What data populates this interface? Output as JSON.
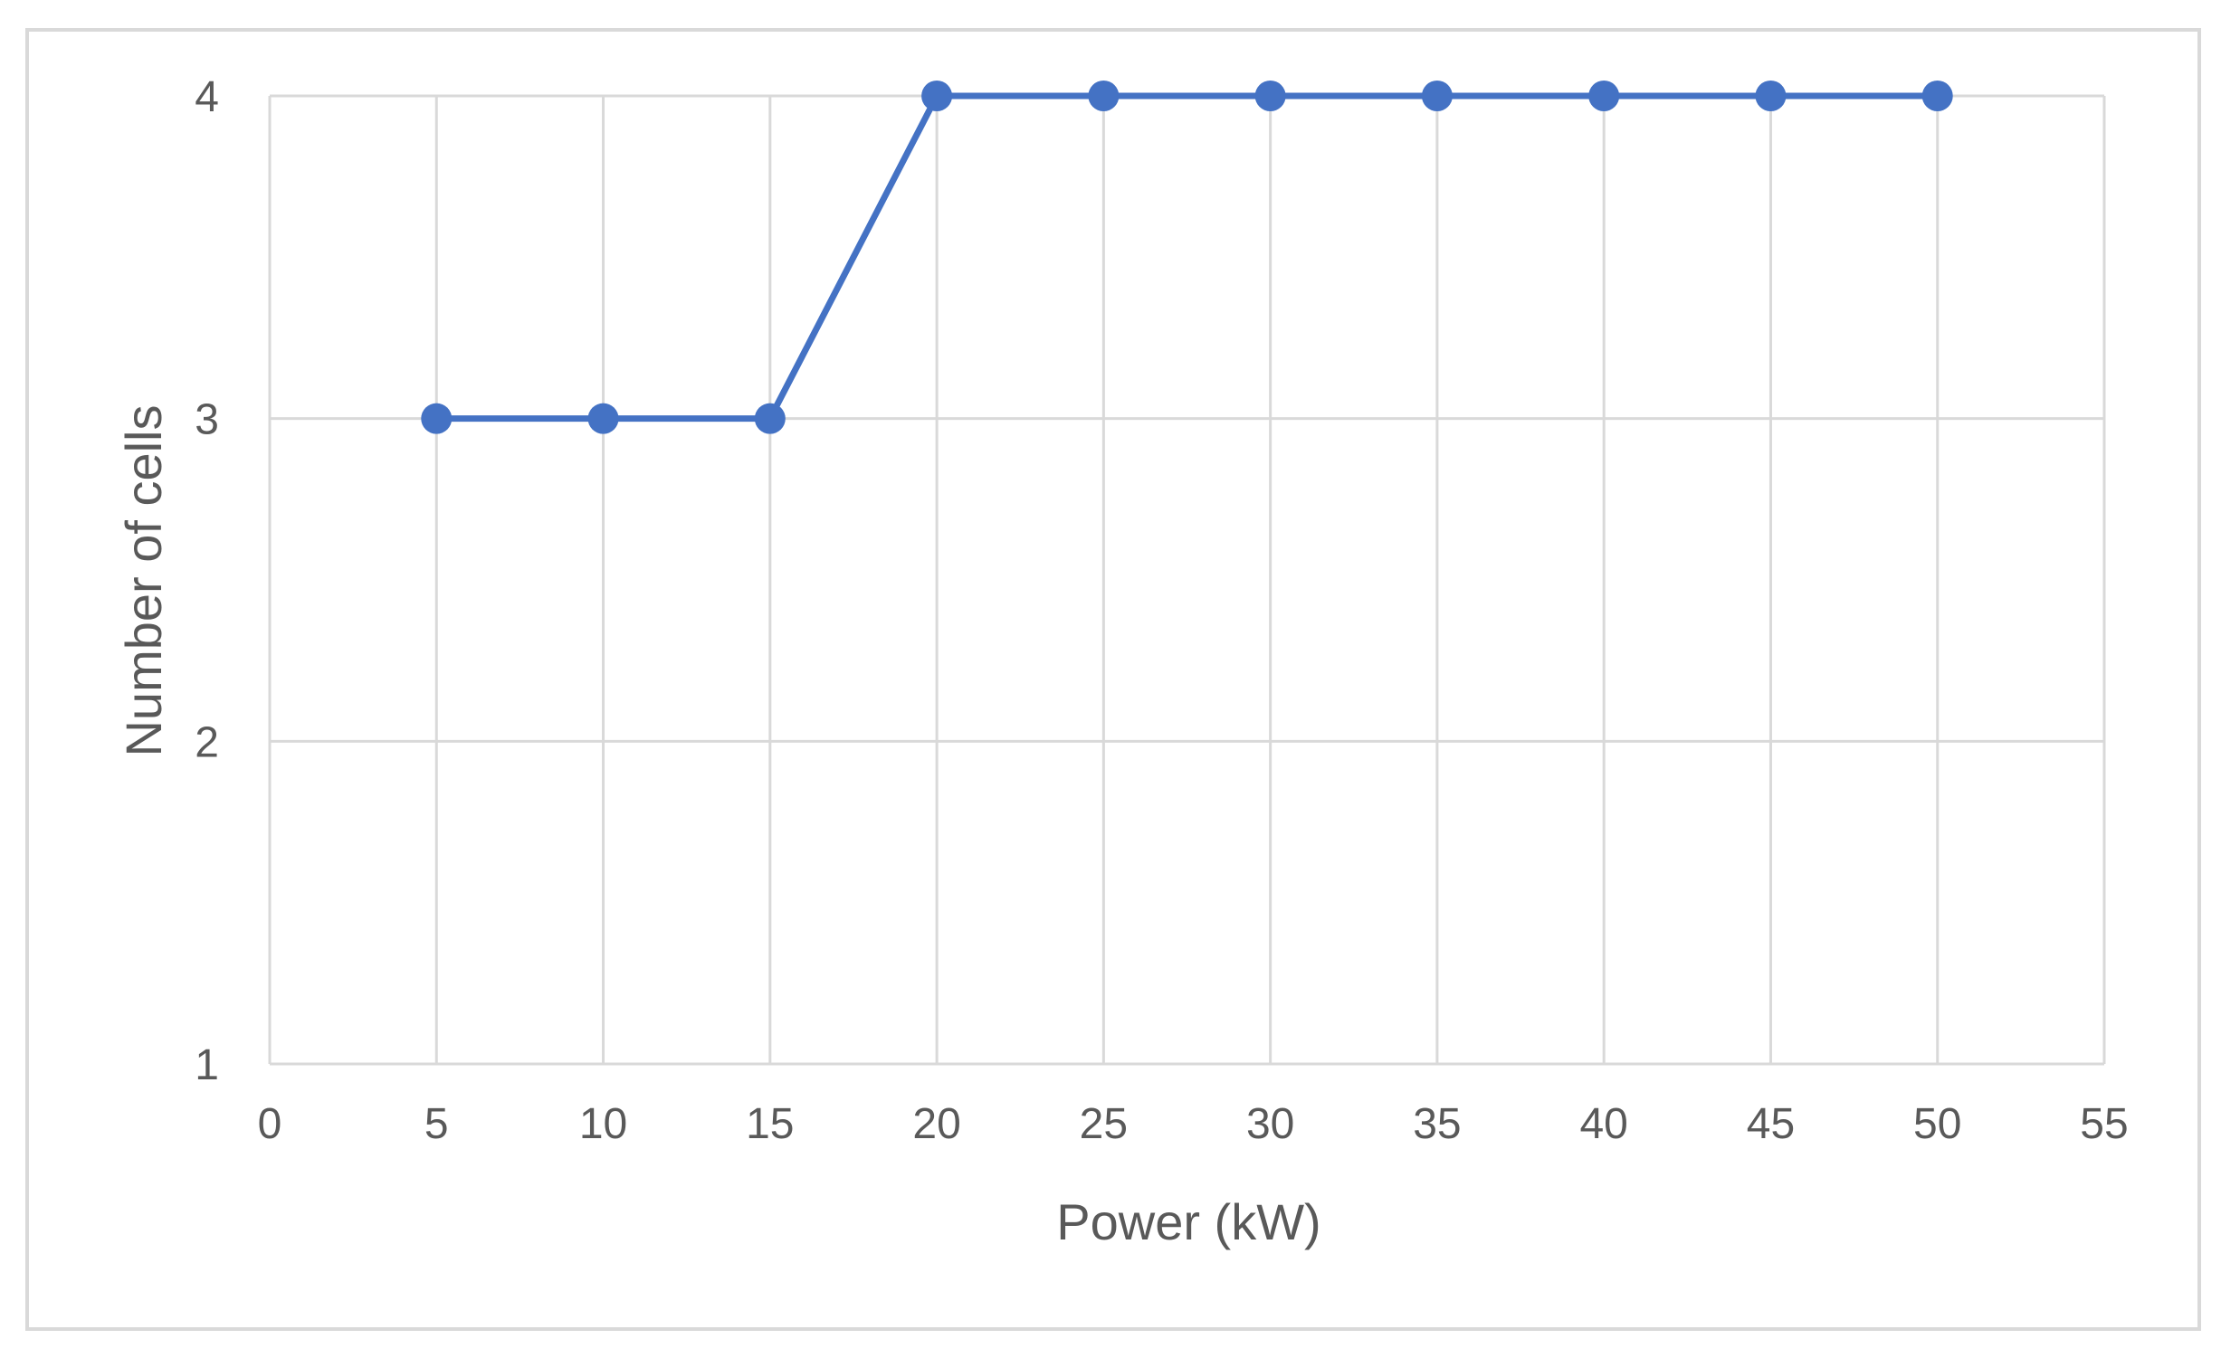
{
  "chart_data": {
    "type": "line",
    "title": "",
    "xlabel": "Power (kW)",
    "ylabel": "Number of cells",
    "xlim": [
      0,
      55
    ],
    "ylim": [
      1,
      4
    ],
    "x_ticks": [
      "0",
      "5",
      "10",
      "15",
      "20",
      "25",
      "30",
      "35",
      "40",
      "45",
      "50",
      "55"
    ],
    "y_ticks": [
      "1",
      "2",
      "3",
      "4"
    ],
    "grid": true,
    "legend": "none",
    "series": [
      {
        "color": "#4472c4",
        "marker": "circle",
        "points": [
          {
            "x": 5,
            "y": 3
          },
          {
            "x": 10,
            "y": 3
          },
          {
            "x": 15,
            "y": 3
          },
          {
            "x": 20,
            "y": 4
          },
          {
            "x": 25,
            "y": 4
          },
          {
            "x": 30,
            "y": 4
          },
          {
            "x": 35,
            "y": 4
          },
          {
            "x": 40,
            "y": 4
          },
          {
            "x": 45,
            "y": 4
          },
          {
            "x": 50,
            "y": 4
          }
        ]
      }
    ],
    "colors": {
      "gridline": "#d9d9d9",
      "text": "#595959",
      "frame": "#d9d9d9"
    }
  }
}
